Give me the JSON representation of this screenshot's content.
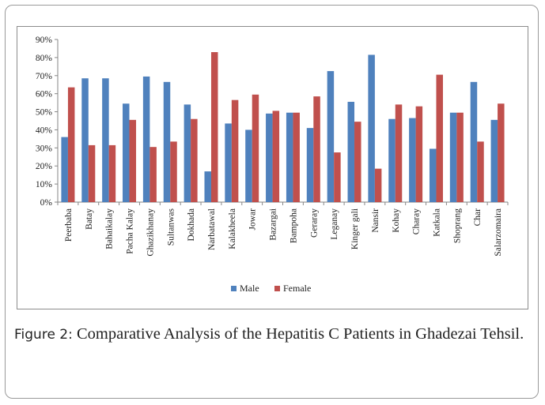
{
  "figure": {
    "label": "Figure 2:",
    "caption": "Comparative Analysis of the Hepatitis C Patients in Ghadezai Tehsil."
  },
  "chart_data": {
    "type": "bar",
    "categories": [
      "Peerbaba",
      "Batay",
      "Bahaikalay",
      "Pacha Kalay",
      "Ghazikhanay",
      "Sultanwas",
      "Dokhada",
      "Narbatawal",
      "Kalakheela",
      "Jowar",
      "Bazargai",
      "Bampoha",
      "Geraray",
      "Leganay",
      "Kinger gali",
      "Nansir",
      "Kohay",
      "Charay",
      "Katkala",
      "Shoprang",
      "Char",
      "Salarzomaira"
    ],
    "series": [
      {
        "name": "Male",
        "color": "#4f81bd",
        "values": [
          36,
          68.5,
          68.5,
          54.5,
          69.5,
          66.5,
          54,
          17,
          43.5,
          40,
          49,
          49.5,
          41,
          72.5,
          55.5,
          81.5,
          46,
          46.5,
          29.5,
          49.5,
          66.5,
          45.5
        ]
      },
      {
        "name": "Female",
        "color": "#c0504d",
        "values": [
          63.5,
          31.5,
          31.5,
          45.5,
          30.5,
          33.5,
          46,
          83,
          56.5,
          59.5,
          50.5,
          49.5,
          58.5,
          27.5,
          44.5,
          18.5,
          54,
          53,
          70.5,
          49.5,
          33.5,
          54.5
        ]
      }
    ],
    "yticks": [
      "0%",
      "10%",
      "20%",
      "30%",
      "40%",
      "50%",
      "60%",
      "70%",
      "80%",
      "90%"
    ],
    "ylim": [
      0,
      90
    ],
    "grid": false,
    "legend_position": "bottom"
  }
}
